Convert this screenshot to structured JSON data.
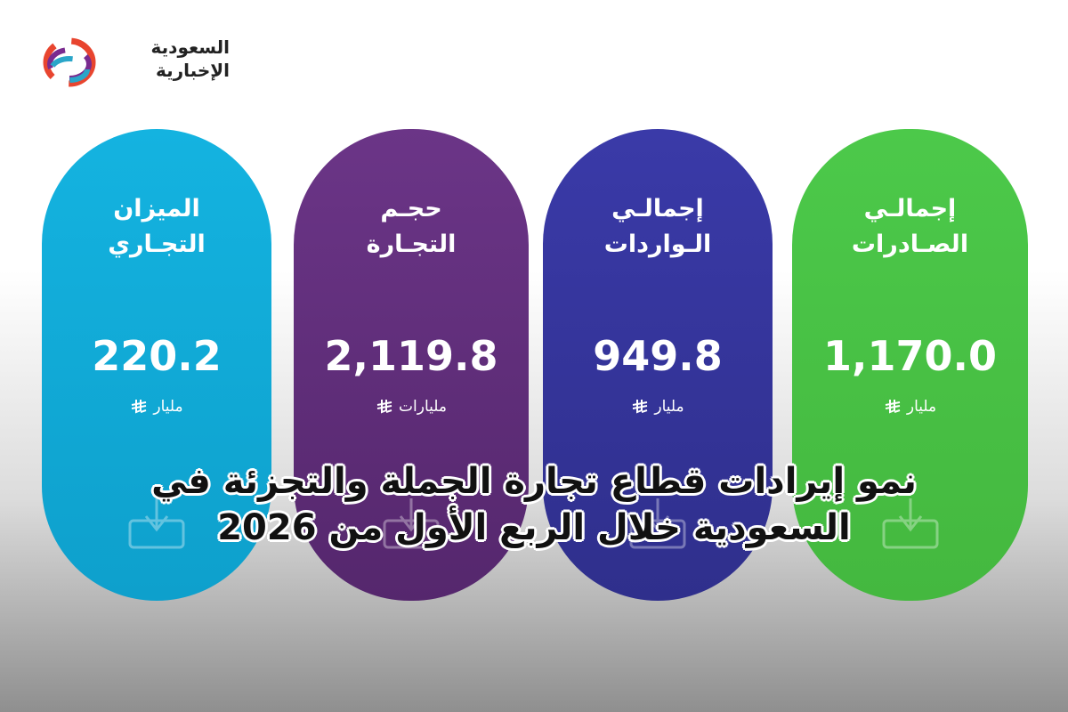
{
  "logo": {
    "line1": "السعودية",
    "line2": "الإخبارية"
  },
  "cards": [
    {
      "title_line1": "إجمالـي",
      "title_line2": "الصـادرات",
      "value": "1,170.0",
      "unit": "مليار"
    },
    {
      "title_line1": "إجمالـي",
      "title_line2": "الـواردات",
      "value": "949.8",
      "unit": "مليار"
    },
    {
      "title_line1": "حجـم",
      "title_line2": "التجـارة",
      "value": "2,119.8",
      "unit": "مليارات"
    },
    {
      "title_line1": "الميزان",
      "title_line2": "التجـاري",
      "value": "220.2",
      "unit": "مليار"
    }
  ],
  "headline": {
    "line1": "نمو إيرادات قطاع تجارة الجملة والتجزئة في",
    "line2": "السعودية خلال الربع الأول من 2026"
  }
}
